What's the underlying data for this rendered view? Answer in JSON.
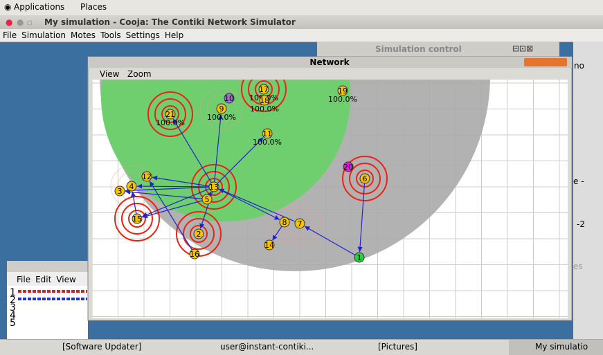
{
  "top_panel": {
    "menus": [
      "Applications",
      "Places"
    ]
  },
  "window": {
    "title": "My simulation - Cooja: The Contiki Network Simulator",
    "menu": [
      "File",
      "Simulation",
      "Motes",
      "Tools",
      "Settings",
      "Help"
    ]
  },
  "simulation_control": {
    "title": "Simulation control"
  },
  "network": {
    "title": "Network",
    "menu": [
      "View",
      "Zoom"
    ],
    "nodes": [
      {
        "label": "1"
      },
      {
        "label": "2"
      },
      {
        "label": "3"
      },
      {
        "label": "4"
      },
      {
        "label": "5"
      },
      {
        "label": "6"
      },
      {
        "label": "7"
      },
      {
        "label": "8"
      },
      {
        "label": "9",
        "rate": "100.0%"
      },
      {
        "label": "10"
      },
      {
        "label": "11",
        "rate": "100.0%"
      },
      {
        "label": "12"
      },
      {
        "label": "13"
      },
      {
        "label": "14"
      },
      {
        "label": "15"
      },
      {
        "label": "16"
      },
      {
        "label": "17",
        "rate": "100.0%"
      },
      {
        "label": "18",
        "rate": "100.0%"
      },
      {
        "label": "19",
        "rate": "100.0%"
      },
      {
        "label": "20"
      },
      {
        "label": "21",
        "rate": "100.0%"
      }
    ]
  },
  "timeline": {
    "menu": [
      "File",
      "Edit",
      "View"
    ],
    "rows": [
      "1",
      "2",
      "3",
      "4",
      "5"
    ]
  },
  "side_fragments": [
    "no",
    "e -",
    "-2",
    "es"
  ],
  "taskbar": [
    "[Software Updater]",
    "user@instant-contiki...",
    "[Pictures]",
    "My simulatio"
  ]
}
